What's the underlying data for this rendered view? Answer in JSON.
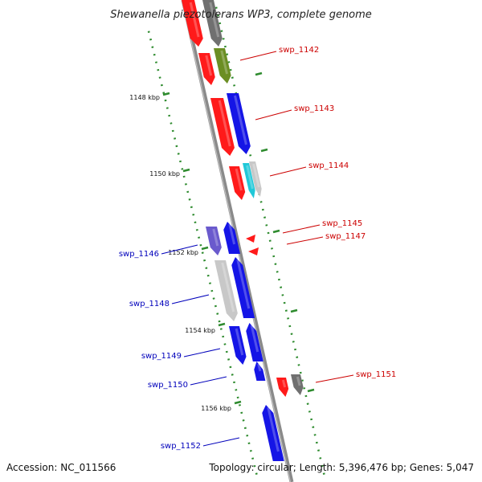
{
  "header": {
    "title": "Shewanella piezotolerans WP3, complete genome"
  },
  "footer": {
    "accession": "Accession: NC_011566",
    "topology": "Topology: circular; Length: 5,396,476 bp; Genes: 5,047"
  },
  "colors": {
    "backbone": "#8a8a8a",
    "tick": "#2e8b2e",
    "forward_label": "#cc0000",
    "reverse_label": "#0000bb",
    "red": "#ff1a1a",
    "blue": "#1515e6",
    "olive": "#6b8e23",
    "gray": "#707070",
    "light_gray": "#c8c8c8",
    "cyan": "#20c8d8",
    "purple": "#6a5acd"
  },
  "scale": {
    "labels": [
      "1148 kbp",
      "1150 kbp",
      "1152 kbp",
      "1154 kbp",
      "1156 kbp"
    ]
  },
  "gene_labels": [
    {
      "text": "swp_1142",
      "strand": "forward"
    },
    {
      "text": "swp_1143",
      "strand": "forward"
    },
    {
      "text": "swp_1144",
      "strand": "forward"
    },
    {
      "text": "swp_1145",
      "strand": "forward"
    },
    {
      "text": "swp_1147",
      "strand": "forward"
    },
    {
      "text": "swp_1146",
      "strand": "reverse"
    },
    {
      "text": "swp_1148",
      "strand": "reverse"
    },
    {
      "text": "swp_1149",
      "strand": "reverse"
    },
    {
      "text": "swp_1150",
      "strand": "reverse"
    },
    {
      "text": "swp_1151",
      "strand": "forward"
    },
    {
      "text": "swp_1152",
      "strand": "reverse"
    }
  ]
}
